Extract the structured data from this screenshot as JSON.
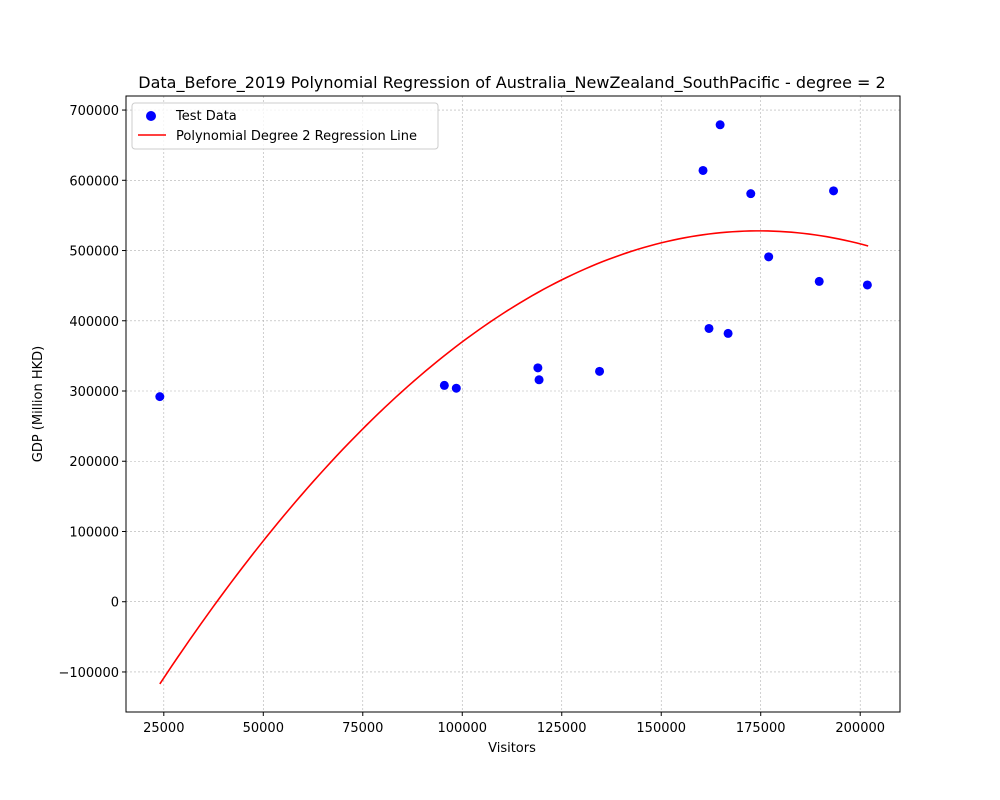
{
  "chart_data": {
    "type": "scatter",
    "title": "Data_Before_2019 Polynomial Regression of Australia_NewZealand_SouthPacific - degree = 2",
    "xlabel": "Visitors",
    "ylabel": "GDP (Million HKD)",
    "xlim": [
      15500,
      210000
    ],
    "ylim": [
      -157000,
      720000
    ],
    "xticks": [
      25000,
      50000,
      75000,
      100000,
      125000,
      150000,
      175000,
      200000
    ],
    "yticks": [
      -100000,
      0,
      100000,
      200000,
      300000,
      400000,
      500000,
      600000,
      700000
    ],
    "grid": true,
    "legend_position": "top-left",
    "series": [
      {
        "name": "Test Data",
        "kind": "scatter",
        "color": "#0000ff",
        "points": [
          [
            24000,
            292000
          ],
          [
            95500,
            308000
          ],
          [
            98500,
            304000
          ],
          [
            119000,
            333000
          ],
          [
            119300,
            316000
          ],
          [
            134500,
            328000
          ],
          [
            160500,
            614000
          ],
          [
            162000,
            389000
          ],
          [
            164800,
            679000
          ],
          [
            166800,
            382000
          ],
          [
            172500,
            581000
          ],
          [
            177000,
            491000
          ],
          [
            189700,
            456000
          ],
          [
            193300,
            585000
          ],
          [
            201800,
            451000
          ]
        ]
      },
      {
        "name": "Polynomial Degree 2 Regression Line",
        "kind": "line",
        "color": "#ff0000",
        "degree": 2,
        "vertex": [
          174500,
          528000
        ],
        "x_range": [
          24000,
          202000
        ],
        "anchor_point": [
          24000,
          -117000
        ]
      }
    ]
  }
}
